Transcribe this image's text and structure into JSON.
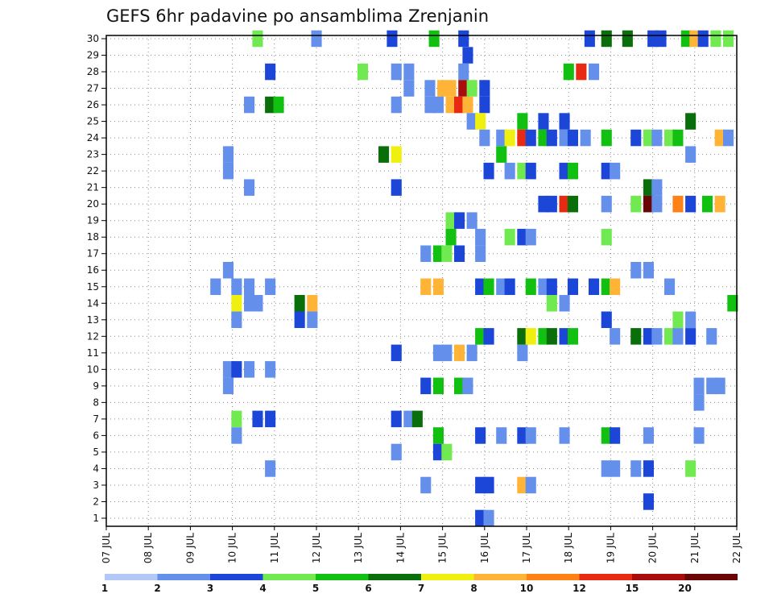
{
  "chart_data": {
    "type": "heatmap",
    "title": "GEFS 6hr padavine po ansamblima Zrenjanin",
    "xlabel": "",
    "ylabel": "",
    "x_tick_labels": [
      "07 JUL",
      "08 JUL",
      "09 JUL",
      "10 JUL",
      "11 JUL",
      "12 JUL",
      "13 JUL",
      "14 JUL",
      "15 JUL",
      "16 JUL",
      "17 JUL",
      "18 JUL",
      "19 JUL",
      "20 JUL",
      "21 JUL",
      "22 JUL"
    ],
    "x_range_days": [
      7,
      22
    ],
    "y_tick_labels": [
      "1",
      "2",
      "3",
      "4",
      "5",
      "6",
      "7",
      "8",
      "9",
      "10",
      "11",
      "12",
      "13",
      "14",
      "15",
      "16",
      "17",
      "18",
      "19",
      "20",
      "21",
      "22",
      "23",
      "24",
      "25",
      "26",
      "27",
      "28",
      "29",
      "30"
    ],
    "y_range": [
      0,
      30
    ],
    "grid": true,
    "legend_placement": "bottom",
    "color_scale": {
      "boundaries": [
        "1",
        "2",
        "3",
        "4",
        "5",
        "6",
        "7",
        "8",
        "10",
        "12",
        "15",
        "20"
      ],
      "colors": [
        "#b4c8f8",
        "#6490ec",
        "#1c46d8",
        "#70ea50",
        "#12c012",
        "#0a6e0a",
        "#f0f010",
        "#ffb438",
        "#ff8216",
        "#e82a12",
        "#a80c0c",
        "#6a0606"
      ]
    },
    "series": [
      {
        "member": 30,
        "day": [
          10.6,
          12.0,
          13.8,
          14.8,
          15.5,
          18.5,
          18.9,
          19.4,
          20.0,
          20.2,
          20.8,
          21.0,
          21.2,
          21.5,
          21.8
        ],
        "value": [
          4,
          2,
          3,
          5,
          3,
          3,
          6,
          6,
          3,
          3,
          5,
          8,
          3,
          4,
          4
        ]
      },
      {
        "member": 29,
        "day": [
          15.6
        ],
        "value": [
          3
        ]
      },
      {
        "member": 28,
        "day": [
          10.9,
          13.1,
          13.9,
          14.2,
          15.5,
          18.0,
          18.3,
          18.6
        ],
        "value": [
          3,
          4,
          2,
          2,
          2,
          5,
          14,
          2
        ]
      },
      {
        "member": 27,
        "day": [
          14.2,
          14.7,
          15.0,
          15.2,
          15.5,
          15.7,
          16.0
        ],
        "value": [
          2,
          2,
          9,
          9,
          15,
          4,
          3
        ]
      },
      {
        "member": 26,
        "day": [
          10.4,
          10.9,
          11.1,
          13.9,
          14.7,
          14.9,
          15.2,
          15.4,
          15.6,
          16.0
        ],
        "value": [
          2,
          6,
          5,
          2,
          2,
          2,
          9,
          14,
          9,
          3
        ]
      },
      {
        "member": 25,
        "day": [
          15.7,
          15.9,
          16.9,
          17.4,
          17.9,
          20.9
        ],
        "value": [
          2,
          7,
          5,
          3,
          3,
          6
        ]
      },
      {
        "member": 24,
        "day": [
          16.0,
          16.4,
          16.6,
          16.9,
          17.1,
          17.4,
          17.6,
          17.9,
          18.1,
          18.4,
          18.9,
          19.6,
          19.9,
          20.1,
          20.4,
          20.6,
          21.6,
          21.8
        ],
        "value": [
          2,
          2,
          7,
          14,
          3,
          5,
          3,
          2,
          3,
          2,
          5,
          3,
          4,
          2,
          4,
          5,
          8,
          2
        ]
      },
      {
        "member": 23,
        "day": [
          9.9,
          13.6,
          13.9,
          16.4,
          20.9
        ],
        "value": [
          2,
          6,
          7,
          5,
          2
        ]
      },
      {
        "member": 22,
        "day": [
          9.9,
          16.1,
          16.6,
          16.9,
          17.1,
          17.9,
          18.1,
          18.9,
          19.1
        ],
        "value": [
          2,
          3,
          2,
          4,
          3,
          3,
          5,
          3,
          2
        ]
      },
      {
        "member": 21,
        "day": [
          10.4,
          13.9,
          19.9,
          20.1
        ],
        "value": [
          2,
          3,
          6,
          2
        ]
      },
      {
        "member": 20,
        "day": [
          17.4,
          17.6,
          17.9,
          18.1,
          18.9,
          19.6,
          19.9,
          20.1,
          20.6,
          20.9,
          21.3,
          21.6
        ],
        "value": [
          3,
          3,
          14,
          6,
          2,
          4,
          20,
          2,
          10,
          3,
          5,
          9
        ]
      },
      {
        "member": 19,
        "day": [
          15.2,
          15.4,
          15.7
        ],
        "value": [
          4,
          3,
          2
        ]
      },
      {
        "member": 18,
        "day": [
          15.2,
          15.9,
          16.6,
          16.9,
          17.1,
          18.9
        ],
        "value": [
          5,
          2,
          4,
          3,
          2,
          4
        ]
      },
      {
        "member": 17,
        "day": [
          14.6,
          14.9,
          15.1,
          15.4,
          15.9
        ],
        "value": [
          2,
          5,
          4,
          3,
          2
        ]
      },
      {
        "member": 16,
        "day": [
          9.9,
          19.6,
          19.9
        ],
        "value": [
          2,
          2,
          2
        ]
      },
      {
        "member": 15,
        "day": [
          9.6,
          10.1,
          10.4,
          10.9,
          14.6,
          14.9,
          15.9,
          16.1,
          16.4,
          16.6,
          17.1,
          17.4,
          17.6,
          18.1,
          18.6,
          18.9,
          19.1,
          20.4
        ],
        "value": [
          2,
          2,
          2,
          2,
          9,
          9,
          3,
          5,
          2,
          3,
          5,
          2,
          3,
          3,
          3,
          5,
          9,
          2
        ]
      },
      {
        "member": 14,
        "day": [
          10.1,
          10.4,
          10.6,
          11.6,
          11.9,
          17.6,
          17.9,
          21.9
        ],
        "value": [
          7,
          2,
          2,
          6,
          9,
          4,
          2,
          5
        ]
      },
      {
        "member": 13,
        "day": [
          10.1,
          11.6,
          11.9,
          18.9,
          20.6,
          20.9
        ],
        "value": [
          2,
          3,
          2,
          3,
          4,
          2
        ]
      },
      {
        "member": 12,
        "day": [
          15.9,
          16.1,
          16.9,
          17.1,
          17.4,
          17.6,
          17.9,
          18.1,
          19.1,
          19.6,
          19.9,
          20.1,
          20.4,
          20.6,
          20.9,
          21.4
        ],
        "value": [
          5,
          3,
          6,
          7,
          5,
          6,
          3,
          5,
          2,
          6,
          3,
          2,
          4,
          2,
          3,
          2
        ]
      },
      {
        "member": 11,
        "day": [
          13.9,
          14.9,
          15.1,
          15.4,
          15.7,
          16.9
        ],
        "value": [
          3,
          2,
          2,
          9,
          2,
          2
        ]
      },
      {
        "member": 10,
        "day": [
          9.9,
          10.1,
          10.4,
          10.9
        ],
        "value": [
          2,
          3,
          2,
          2
        ]
      },
      {
        "member": 9,
        "day": [
          9.9,
          14.6,
          14.9,
          15.4,
          15.6,
          21.1,
          21.4,
          21.6
        ],
        "value": [
          2,
          3,
          5,
          5,
          2,
          2,
          2,
          2
        ]
      },
      {
        "member": 8,
        "day": [
          21.1
        ],
        "value": [
          2
        ]
      },
      {
        "member": 7,
        "day": [
          10.1,
          10.6,
          10.9,
          13.9,
          14.2,
          14.4
        ],
        "value": [
          4,
          3,
          3,
          3,
          2,
          6
        ]
      },
      {
        "member": 6,
        "day": [
          10.1,
          14.9,
          15.9,
          16.4,
          16.9,
          17.1,
          17.9,
          18.9,
          19.1,
          19.9,
          21.1
        ],
        "value": [
          2,
          5,
          3,
          2,
          3,
          2,
          2,
          5,
          3,
          2,
          2
        ]
      },
      {
        "member": 5,
        "day": [
          13.9,
          14.9,
          15.1
        ],
        "value": [
          2,
          3,
          4
        ]
      },
      {
        "member": 4,
        "day": [
          10.9,
          18.9,
          19.1,
          19.6,
          19.9,
          20.9
        ],
        "value": [
          2,
          2,
          2,
          2,
          3,
          4
        ]
      },
      {
        "member": 3,
        "day": [
          14.6,
          15.9,
          16.1,
          16.9,
          17.1
        ],
        "value": [
          2,
          3,
          3,
          9,
          2
        ]
      },
      {
        "member": 2,
        "day": [
          19.9
        ],
        "value": [
          3
        ]
      },
      {
        "member": 1,
        "day": [
          15.9,
          16.1
        ],
        "value": [
          3,
          2
        ]
      }
    ]
  }
}
